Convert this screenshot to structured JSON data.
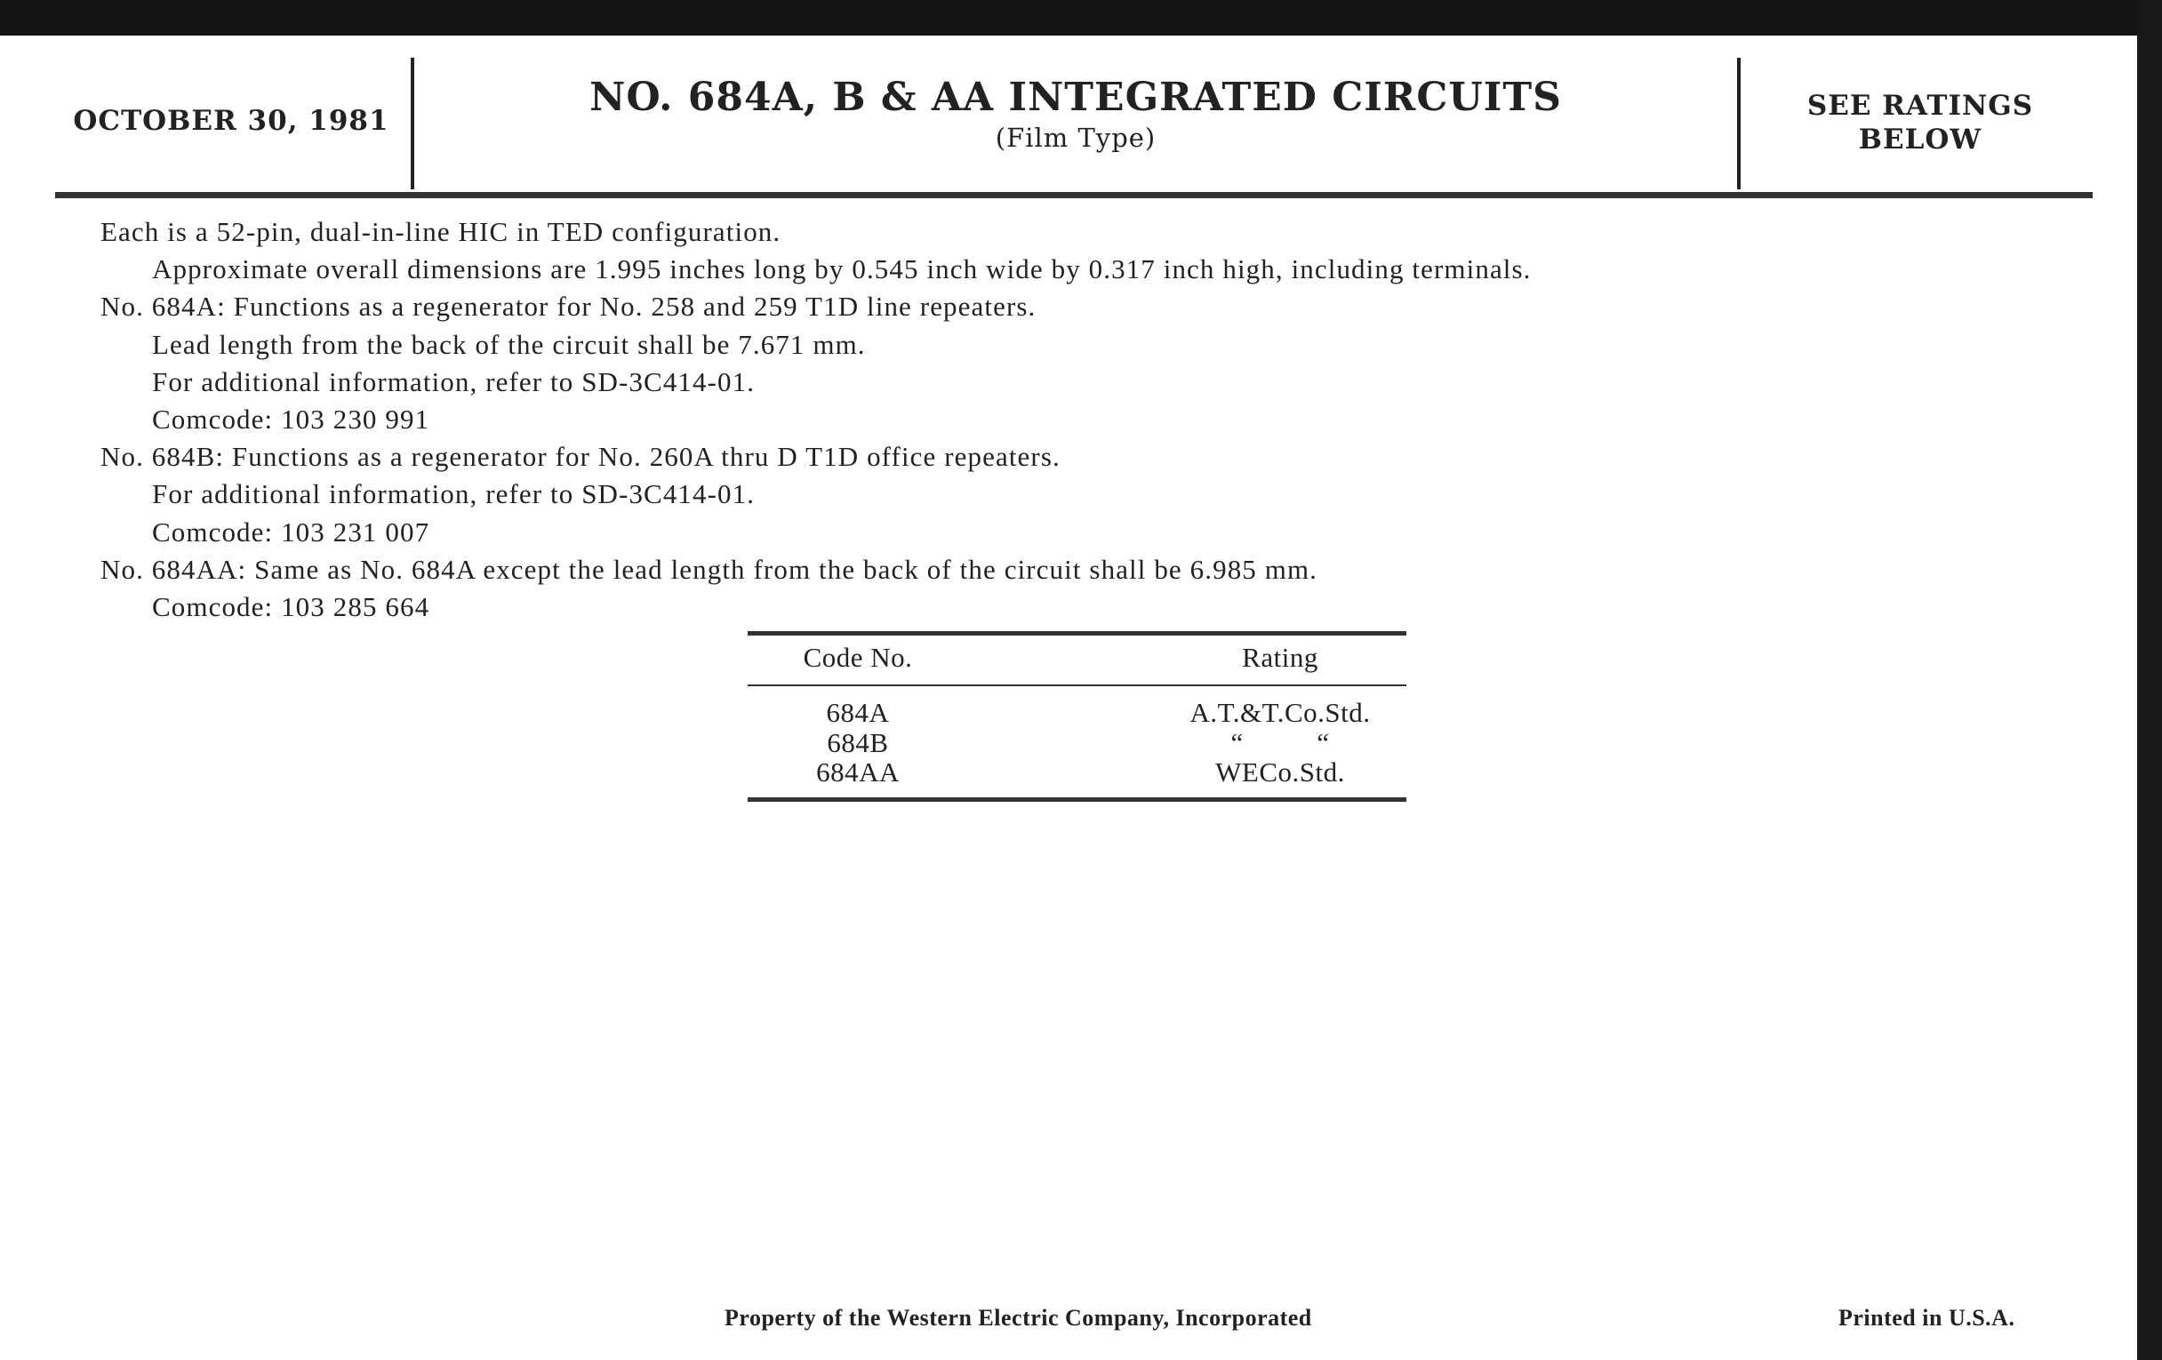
{
  "header": {
    "date": "OCTOBER 30, 1981",
    "title": "NO. 684A, B & AA INTEGRATED CIRCUITS",
    "subtitle": "(Film Type)",
    "ratings_note_line1": "SEE RATINGS",
    "ratings_note_line2": "BELOW"
  },
  "body": {
    "lines": [
      "Each is a 52-pin, dual-in-line HIC in TED configuration.",
      "Approximate overall dimensions are 1.995 inches long by 0.545 inch wide by 0.317 inch high, including terminals.",
      "No. 684A: Functions as a regenerator for No. 258 and 259 T1D line repeaters.",
      "Lead length from the back of the circuit shall be 7.671 mm.",
      "For additional information, refer to SD-3C414-01.",
      "Comcode: 103 230 991",
      "No. 684B: Functions as a regenerator for No. 260A thru D T1D office repeaters.",
      "For additional information, refer to SD-3C414-01.",
      "Comcode: 103 231 007",
      "No. 684AA: Same as No. 684A except the lead length from the back of the circuit shall be 6.985 mm.",
      "Comcode: 103 285 664"
    ]
  },
  "ratings_table": {
    "headers": [
      "Code No.",
      "Rating"
    ],
    "rows": [
      [
        "684A",
        "A.T.&T.Co.Std."
      ],
      [
        "684B",
        "“          “"
      ],
      [
        "684AA",
        "WECo.Std."
      ]
    ]
  },
  "footer": {
    "property": "Property of the Western Electric Company, Incorporated",
    "printed": "Printed in U.S.A."
  }
}
